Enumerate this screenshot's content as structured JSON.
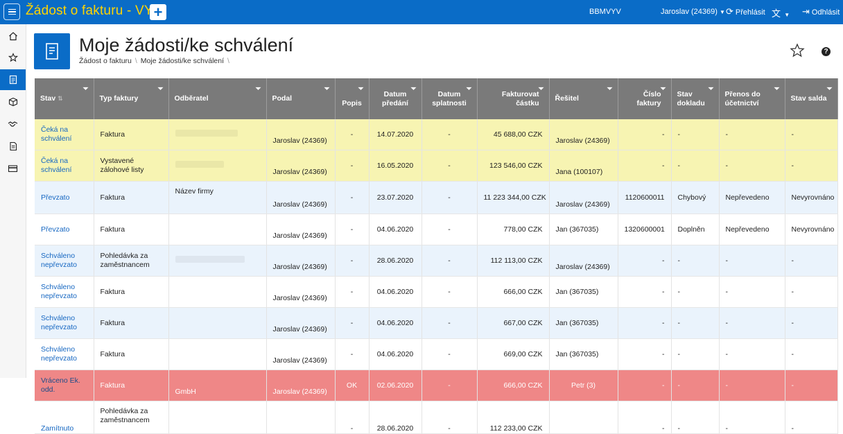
{
  "app": {
    "title": "Žádost o fakturu - VYV",
    "add_label": "+"
  },
  "topbar": {
    "org": "BBMVYV",
    "user": "Jaroslav (24369)",
    "refresh": "Přehlásit",
    "logout": "Odhlásit"
  },
  "page": {
    "title": "Moje žádosti/ke schválení",
    "breadcrumbs": [
      "Žádost o fakturu",
      "Moje žádosti/ke schválení"
    ],
    "help": "?"
  },
  "sidebar": {
    "items": [
      "home-icon",
      "star-icon",
      "document-list-icon",
      "package-icon",
      "handshake-icon",
      "file-icon",
      "card-icon"
    ]
  },
  "table": {
    "headers": [
      "Stav",
      "Typ faktury",
      "Odběratel",
      "Podal",
      "Popis",
      "Datum předání",
      "Datum splatnosti",
      "Fakturovat částku",
      "Řešitel",
      "Číslo faktury",
      "Stav dokladu",
      "Přenos do účetnictví",
      "Stav salda"
    ],
    "rows": [
      {
        "stav": "Čeká na schválení",
        "typ": "Faktura",
        "odberatel": "",
        "podal": "Jaroslav (24369)",
        "popis": "-",
        "datum": "14.07.2020",
        "splatnost": "-",
        "castka": "45 688,00 CZK",
        "resitel": "Jaroslav (24369)",
        "cislo": "-",
        "stavdokl": "-",
        "prenos": "-",
        "saldo": "-"
      },
      {
        "stav": "Čeká na schválení",
        "typ": "Vystavené zálohové listy",
        "odberatel": "",
        "podal": "Jaroslav (24369)",
        "popis": "-",
        "datum": "16.05.2020",
        "splatnost": "-",
        "castka": "123 546,00 CZK",
        "resitel": "Jana (100107)",
        "cislo": "-",
        "stavdokl": "-",
        "prenos": "-",
        "saldo": "-"
      },
      {
        "stav": "Převzato",
        "typ": "Faktura",
        "odberatel": "Název firmy",
        "podal": "Jaroslav (24369)",
        "popis": "-",
        "datum": "23.07.2020",
        "splatnost": "-",
        "castka": "11 223 344,00 CZK",
        "resitel": "Jaroslav (24369)",
        "cislo": "1120600011",
        "stavdokl": "Chybový",
        "prenos": "Nepřevedeno",
        "saldo": "Nevyrovnáno"
      },
      {
        "stav": "Převzato",
        "typ": "Faktura",
        "odberatel": "",
        "podal": "Jaroslav (24369)",
        "popis": "-",
        "datum": "04.06.2020",
        "splatnost": "-",
        "castka": "778,00 CZK",
        "resitel": "Jan (367035)",
        "cislo": "1320600001",
        "stavdokl": "Doplněn",
        "prenos": "Nepřevedeno",
        "saldo": "Nevyrovnáno"
      },
      {
        "stav": "Schváleno nepřevzato",
        "typ": "Pohledávka za zaměstnancem",
        "odberatel": "",
        "podal": "Jaroslav (24369)",
        "popis": "-",
        "datum": "28.06.2020",
        "splatnost": "-",
        "castka": "112 113,00 CZK",
        "resitel": "Jaroslav (24369)",
        "cislo": "-",
        "stavdokl": "-",
        "prenos": "-",
        "saldo": "-"
      },
      {
        "stav": "Schváleno nepřevzato",
        "typ": "Faktura",
        "odberatel": "",
        "podal": "Jaroslav (24369)",
        "popis": "-",
        "datum": "04.06.2020",
        "splatnost": "-",
        "castka": "666,00 CZK",
        "resitel": "Jan (367035)",
        "cislo": "-",
        "stavdokl": "-",
        "prenos": "-",
        "saldo": "-"
      },
      {
        "stav": "Schváleno nepřevzato",
        "typ": "Faktura",
        "odberatel": "",
        "podal": "Jaroslav (24369)",
        "popis": "-",
        "datum": "04.06.2020",
        "splatnost": "-",
        "castka": "667,00 CZK",
        "resitel": "Jan (367035)",
        "cislo": "-",
        "stavdokl": "-",
        "prenos": "-",
        "saldo": "-"
      },
      {
        "stav": "Schváleno nepřevzato",
        "typ": "Faktura",
        "odberatel": "",
        "podal": "Jaroslav (24369)",
        "popis": "-",
        "datum": "04.06.2020",
        "splatnost": "-",
        "castka": "669,00 CZK",
        "resitel": "Jan (367035)",
        "cislo": "-",
        "stavdokl": "-",
        "prenos": "-",
        "saldo": "-"
      },
      {
        "stav": "Vráceno Ek. odd.",
        "typ": "Faktura",
        "odberatel": "GmbH",
        "podal": "Jaroslav (24369)",
        "popis": "OK",
        "datum": "02.06.2020",
        "splatnost": "-",
        "castka": "666,00 CZK",
        "resitel": "Petr (3)",
        "cislo": "-",
        "stavdokl": "-",
        "prenos": "-",
        "saldo": "-"
      },
      {
        "stav": "Zamítnuto",
        "typ": "Pohledávka za zaměstnancem",
        "odberatel": "",
        "podal": "",
        "popis": "-",
        "datum": "28.06.2020",
        "splatnost": "-",
        "castka": "112 233,00 CZK",
        "resitel": "",
        "cislo": "-",
        "stavdokl": "-",
        "prenos": "-",
        "saldo": "-"
      }
    ]
  }
}
